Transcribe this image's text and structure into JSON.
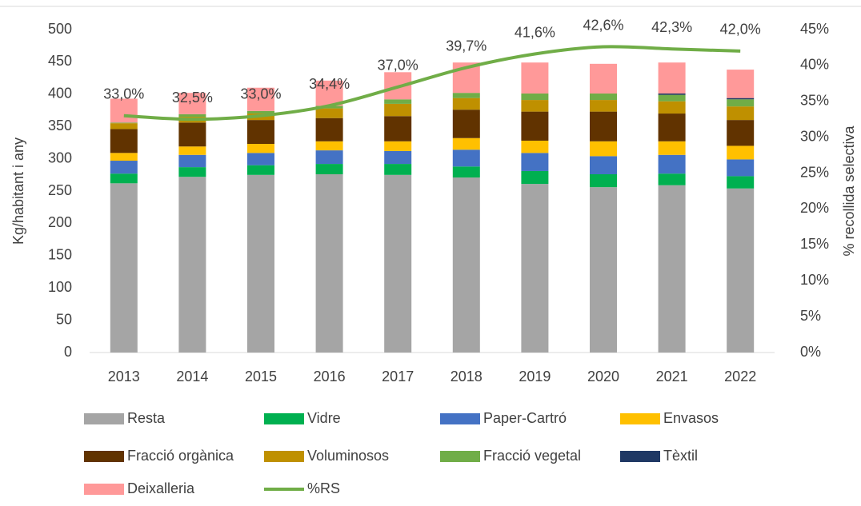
{
  "chart_data": {
    "type": "bar",
    "stacked": true,
    "categories": [
      "2013",
      "2014",
      "2015",
      "2016",
      "2017",
      "2018",
      "2019",
      "2020",
      "2021",
      "2022"
    ],
    "ylabel": "Kg/habitant i any",
    "y2label": "% recollida selectiva",
    "ylim": [
      0,
      500
    ],
    "yticks": [
      0,
      50,
      100,
      150,
      200,
      250,
      300,
      350,
      400,
      450,
      500
    ],
    "y2lim": [
      0,
      45
    ],
    "y2ticks": [
      {
        "value": 0,
        "label": "0%"
      },
      {
        "value": 5,
        "label": "5%"
      },
      {
        "value": 10,
        "label": "10%"
      },
      {
        "value": 15,
        "label": "15%"
      },
      {
        "value": 20,
        "label": "20%"
      },
      {
        "value": 25,
        "label": "25%"
      },
      {
        "value": 30,
        "label": "30%"
      },
      {
        "value": 35,
        "label": "35%"
      },
      {
        "value": 40,
        "label": "40%"
      },
      {
        "value": 45,
        "label": "45%"
      }
    ],
    "grid": false,
    "series": [
      {
        "name": "Resta",
        "color": "#a5a5a5",
        "values": [
          262,
          272,
          275,
          276,
          275,
          271,
          261,
          256,
          259,
          254
        ]
      },
      {
        "name": "Vidre",
        "color": "#00b050",
        "values": [
          15,
          15,
          15,
          16,
          17,
          17,
          20,
          20,
          18,
          19
        ]
      },
      {
        "name": "Paper-Cartró",
        "color": "#4472c4",
        "values": [
          20,
          19,
          19,
          21,
          20,
          26,
          28,
          28,
          29,
          26
        ]
      },
      {
        "name": "Envasos",
        "color": "#ffc000",
        "values": [
          12,
          13,
          14,
          14,
          15,
          18,
          19,
          23,
          21,
          21
        ]
      },
      {
        "name": "Fracció orgànica",
        "color": "#613300",
        "values": [
          37,
          37,
          37,
          36,
          39,
          44,
          45,
          46,
          43,
          40
        ]
      },
      {
        "name": "Voluminosos",
        "color": "#bf9000",
        "values": [
          9,
          9,
          10,
          15,
          19,
          18,
          18,
          18,
          19,
          21
        ]
      },
      {
        "name": "Fracció vegetal",
        "color": "#70ad47",
        "values": [
          1,
          4,
          4,
          4,
          7,
          8,
          10,
          10,
          10,
          11
        ]
      },
      {
        "name": "Tèxtil",
        "color": "#1f3864",
        "values": [
          0,
          0,
          0,
          0,
          0,
          0,
          0,
          0,
          2,
          2
        ]
      },
      {
        "name": "Deixalleria",
        "color": "#ff9999",
        "values": [
          37,
          33,
          36,
          39,
          42,
          47,
          48,
          46,
          48,
          44
        ]
      },
      {
        "name": "%RS",
        "color": "#70ad47",
        "type": "line",
        "axis": "y2",
        "values": [
          33.0,
          32.5,
          33.0,
          34.4,
          37.0,
          39.7,
          41.6,
          42.6,
          42.3,
          42.0
        ],
        "value_labels": [
          "33,0%",
          "32,5%",
          "33,0%",
          "34,4%",
          "37,0%",
          "39,7%",
          "41,6%",
          "42,6%",
          "42,3%",
          "42,0%"
        ]
      }
    ]
  }
}
